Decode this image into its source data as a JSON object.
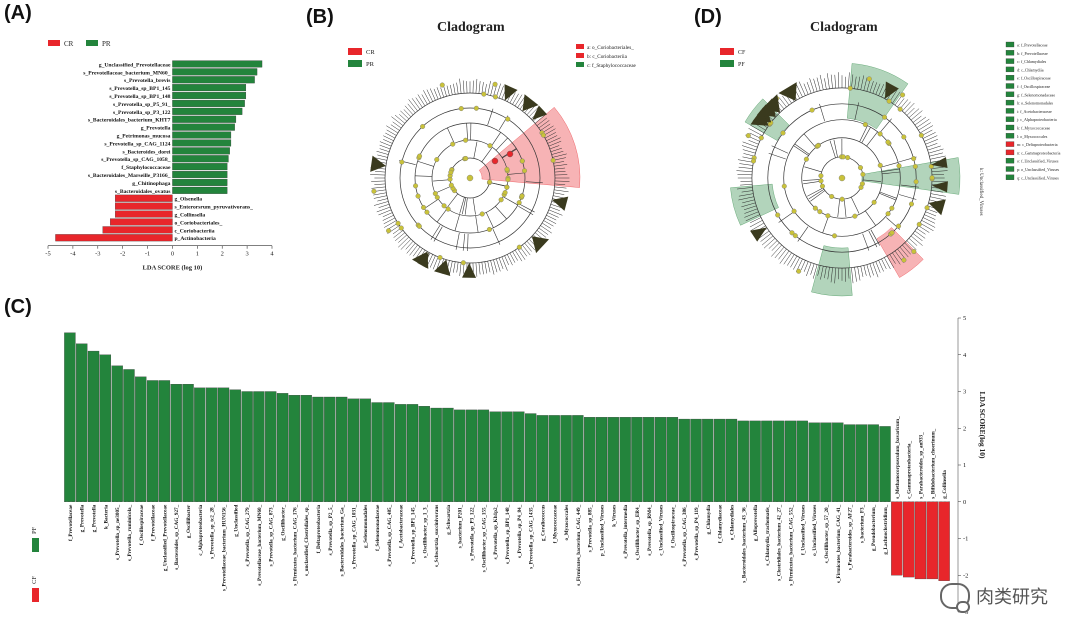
{
  "panels": {
    "A": {
      "label": "(A)"
    },
    "B": {
      "label": "(B)",
      "title": "Cladogram"
    },
    "C": {
      "label": "(C)"
    },
    "D": {
      "label": "(D)",
      "title": "Cladogram"
    }
  },
  "colors": {
    "CR": "#e8262b",
    "PR": "#23843c",
    "outline": "#444444",
    "node": "#c9c23a"
  },
  "chart_data": [
    {
      "type": "bar",
      "orientation": "horizontal",
      "panel": "A",
      "legend": [
        {
          "name": "CR",
          "color": "#e8262b"
        },
        {
          "name": "PR",
          "color": "#23843c"
        }
      ],
      "xlabel": "LDA SCORE (log 10)",
      "xlim": [
        -5,
        4
      ],
      "xticks": [
        -5,
        -4,
        -3,
        -2,
        -1,
        0,
        1,
        2,
        3,
        4
      ],
      "categories": [
        "g_Unclassified_Prevotellaceae",
        "s_Prevotellaceae_bacterium_MN60_",
        "s_Prevotella_brevis",
        "s_Prevotella_sp_BP1_145",
        "s_Prevotella_sp_BP1_148",
        "s_Prevotella_sp_P5_91_",
        "s_Prevotella_sp_P3_122",
        "s_Bacteroidales_bacterium_KHT7",
        "g_Prevotella",
        "g_Petrimonas_mucosa",
        "s_Prevotella_sp_CAG_1124",
        "s_Bacteroides_dorei",
        "s_Prevotella_sp_CAG_1058_",
        "f_Staphylococcaceae",
        "s_Bacteroidales_Marseille_P3166_",
        "g_Chitinophaga",
        "s_Bacteroidales_ovatus",
        "g_Olsenella",
        "s_Enterorsrum_pyruvativorans_",
        "g_Collinsella",
        "o_Coriobacteriales_",
        "c_Coriobacteriia",
        "p_Actinobacteria"
      ],
      "values": [
        3.6,
        3.4,
        3.3,
        2.95,
        2.95,
        2.9,
        2.8,
        2.55,
        2.5,
        2.35,
        2.35,
        2.3,
        2.25,
        2.2,
        2.2,
        2.2,
        2.2,
        -2.3,
        -2.3,
        -2.3,
        -2.5,
        -2.8,
        -4.7
      ],
      "groups": [
        "PR",
        "PR",
        "PR",
        "PR",
        "PR",
        "PR",
        "PR",
        "PR",
        "PR",
        "PR",
        "PR",
        "PR",
        "PR",
        "PR",
        "PR",
        "PR",
        "PR",
        "CR",
        "CR",
        "CR",
        "CR",
        "CR",
        "CR"
      ]
    },
    {
      "type": "cladogram",
      "panel": "B",
      "title": "Cladogram",
      "legend": [
        {
          "name": "CR",
          "color": "#e8262b"
        },
        {
          "name": "PR",
          "color": "#23843c"
        }
      ],
      "annotations": [
        "a: o_Coriobacteriales_",
        "b: c_Coriobacteriia",
        "c: f_Staphylococcaceae"
      ]
    },
    {
      "type": "bar",
      "orientation": "vertical",
      "panel": "C",
      "ylabel": "LDA SCORE(log 10)",
      "ylim": [
        -3,
        5
      ],
      "yticks": [
        -3,
        -2,
        -1,
        0,
        1,
        2,
        3,
        4,
        5
      ],
      "legend": [
        {
          "name": "PF",
          "color": "#23843c"
        },
        {
          "name": "CF",
          "color": "#e8262b"
        }
      ],
      "categories": [
        "f_Prevotellaceae",
        "g_Prevotella",
        "g_Prevotella",
        "k_Bacteria",
        "s_Prevotella_sp_ne3005_",
        "s_Prevotella_ruminicola_",
        "f_Oscillospiraceae",
        "f_Prevotellaceae",
        "g_Unclassified_Prevotellaceae",
        "s_Bacteroides_sp_CAG_927_",
        "g_Oscillibacter",
        "c_Alphaproteobacteria",
        "s_Prevotella_sp_tc2_28_",
        "s_Prevotellaceae_bacterium_HUN156_",
        "g_Unclassified",
        "s_Prevotella_sp_CAG_279_",
        "s_Prevotellaceae_bacterium_MN60_",
        "s_Prevotella_sp_CAG_873_",
        "g_Oscillibacter_",
        "s_Firmicutes_bacterium_CAG_176_",
        "s_unclassified_Clostridiales_sp_",
        "f_Deltaproteobacteria",
        "s_Prevotella_sp_P2_5_",
        "s_Bacteroidales_bacterium_Ga_",
        "s_Prevotella_sp_CAG_1031_",
        "g_Selenomonadales",
        "f_Selenomonadaceae",
        "s_Prevotella_sp_CAG_485_",
        "f_Acetobacteraceae",
        "s_Prevotella_sp_BP1_145_",
        "s_Oscillibacter_sp_1_3_",
        "s_Schwartzia_succinivorans",
        "g_Schwartzia",
        "s_bacterium_P201_",
        "s_Prevotella_sp_P3_122_",
        "s_Oscillibacter_sp_CAG_155_",
        "s_Prevotella_sp_Kh1p2_",
        "s_Prevotella_sp_BP1_148_",
        "s_Prevotella_sp_P4_84_",
        "s_Prevotella_sp_CAG_1435_",
        "g_Coraliococcus",
        "f_Myxococcaceae",
        "o_Myxococcales",
        "s_Firmicutes_bacterium_CAG_449_",
        "s_Prevotella_sp_885_",
        "p_Unclassified_Viruses",
        "k_Viruses",
        "s_Prevotella_intermedia",
        "s_Oscillibacter_sp_ER4_",
        "s_Prevotella_sp_RM4_",
        "c_Unclassified_Viruses",
        "f_Oscillospiraceae_",
        "s_Prevotella_sp_CAG_386_",
        "s_Prevotella_sp_P4_119_",
        "g_Chlamydia",
        "f_Chlamydiaceae",
        "o_Chlamydiales",
        "s_Bacteroidales_bacterium_43_36_",
        "g_Alloprevotella",
        "s_Chlamydia_trachomatis_",
        "s_Clostridiales_bacterium_42_27_",
        "s_Firmicutes_bacterium_CAG_552_",
        "f_Unclassified_Viruses",
        "o_Unclassified_Viruses",
        "s_Oscillibacter_sp_57_20_",
        "s_Firmicutes_bacterium_CAG_41_",
        "s_Parabacteroides_sp_AF27_",
        "s_bacterium_F3_",
        "g_Pseudobacterium_",
        "g_Lachnoclostridium_",
        "s_Methanocorpusculum_bavaricum_",
        "c_Gammaproteobacteria_",
        "s_Parabacteroides_sp_an933_",
        "s_Bifidobacterium_choerinum_",
        "g_Collinsella"
      ],
      "values": [
        4.6,
        4.3,
        4.1,
        4.0,
        3.7,
        3.6,
        3.4,
        3.3,
        3.3,
        3.2,
        3.2,
        3.1,
        3.1,
        3.1,
        3.05,
        3.0,
        3.0,
        3.0,
        2.95,
        2.9,
        2.9,
        2.85,
        2.85,
        2.85,
        2.8,
        2.8,
        2.7,
        2.7,
        2.65,
        2.65,
        2.6,
        2.55,
        2.55,
        2.5,
        2.5,
        2.5,
        2.45,
        2.45,
        2.45,
        2.4,
        2.35,
        2.35,
        2.35,
        2.35,
        2.3,
        2.3,
        2.3,
        2.3,
        2.3,
        2.3,
        2.3,
        2.3,
        2.25,
        2.25,
        2.25,
        2.25,
        2.25,
        2.2,
        2.2,
        2.2,
        2.2,
        2.2,
        2.2,
        2.15,
        2.15,
        2.15,
        2.1,
        2.1,
        2.1,
        2.05,
        -2.0,
        -2.05,
        -2.1,
        -2.1,
        -2.15
      ],
      "groups_note": "first 70 = PF (green), last 5 = CF (red)"
    },
    {
      "type": "cladogram",
      "panel": "D",
      "title": "Cladogram",
      "legend": [
        {
          "name": "CF",
          "color": "#e8262b"
        },
        {
          "name": "PF",
          "color": "#23843c"
        }
      ],
      "annotations": [
        "a: f_Prevotellaceae",
        "b: f_Prevotellaceae",
        "c: f_Chlamydiales",
        "d: c_Chlamydiia",
        "e: f_Oscillospiraceae",
        "f: f_Oscillospiraceae",
        "g: f_Selenomonadaceae",
        "h: o_Selenomonadales",
        "i: f_Acetobacteraceae",
        "j: c_Alphaproteobacteria",
        "k: f_Myxococcaceae",
        "l: o_Myxococcales",
        "m: c_Deltaproteobacteria",
        "n: c_Gammaproteobacteria",
        "o: f_Unclassified_Viruses",
        "p: o_Unclassified_Viruses",
        "q: c_Unclassified_Viruses"
      ],
      "side_label": "k: Unclassified_Viruses"
    }
  ],
  "watermark": {
    "text": "肉类研究"
  }
}
